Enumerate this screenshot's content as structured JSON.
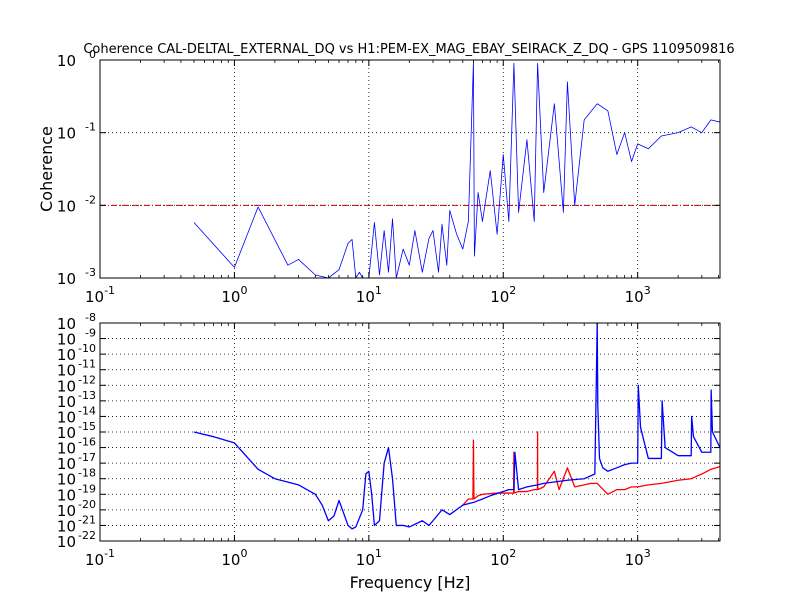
{
  "chart_data": [
    {
      "type": "line",
      "title": "Coherence CAL-DELTAL_EXTERNAL_DQ vs H1:PEM-EX_MAG_EBAY_SEIRACK_Z_DQ - GPS 1109509816",
      "xlabel": "",
      "ylabel": "Coherence",
      "xscale": "log",
      "yscale": "log",
      "xlim": [
        0.1,
        4096
      ],
      "ylim": [
        0.001,
        1
      ],
      "grid": true,
      "x_ticks": [
        {
          "value": 0.1,
          "base": "10",
          "exp": "-1"
        },
        {
          "value": 1,
          "base": "10",
          "exp": "0"
        },
        {
          "value": 10,
          "base": "10",
          "exp": "1"
        },
        {
          "value": 100,
          "base": "10",
          "exp": "2"
        },
        {
          "value": 1000,
          "base": "10",
          "exp": "3"
        }
      ],
      "y_ticks": [
        {
          "value": 1,
          "base": "10",
          "exp": "0"
        },
        {
          "value": 0.1,
          "base": "10",
          "exp": "-1"
        },
        {
          "value": 0.01,
          "base": "10",
          "exp": "-2"
        },
        {
          "value": 0.001,
          "base": "10",
          "exp": "-3"
        }
      ],
      "threshold": {
        "value": 0.01,
        "color": "#cc0000",
        "style": "dash-dot"
      },
      "series": [
        {
          "color": "#0000ff",
          "x": [
            0.5,
            1.0,
            1.5,
            2.5,
            3.0,
            4.0,
            5.0,
            6.0,
            7.0,
            7.5,
            8.0,
            8.5,
            9.0,
            10.0,
            11.0,
            12.0,
            13.0,
            14.0,
            15.0,
            16.0,
            18.0,
            20.0,
            22.0,
            25.0,
            28.0,
            30.0,
            33.0,
            35.0,
            38.0,
            40.0,
            45.0,
            50.0,
            55.0,
            60.0,
            61.0,
            65.0,
            70.0,
            80.0,
            90.0,
            100.0,
            110.0,
            120.0,
            130.0,
            150.0,
            170.0,
            180.0,
            200.0,
            240.0,
            280.0,
            300.0,
            340.0,
            400.0,
            500.0,
            600.0,
            700.0,
            800.0,
            900.0,
            1000.0,
            1200.0,
            1500.0,
            2000.0,
            2500.0,
            3000.0,
            3500.0,
            4096.0
          ],
          "y": [
            0.0058,
            0.0014,
            0.0095,
            0.0015,
            0.0018,
            0.0011,
            0.001,
            0.0013,
            0.003,
            0.0034,
            0.001,
            0.0012,
            0.001,
            0.001,
            0.0058,
            0.0011,
            0.0045,
            0.0012,
            0.0065,
            0.001,
            0.0025,
            0.0015,
            0.0045,
            0.0012,
            0.0035,
            0.0045,
            0.0012,
            0.0055,
            0.0015,
            0.0085,
            0.004,
            0.0025,
            0.006,
            0.95,
            0.002,
            0.015,
            0.006,
            0.03,
            0.004,
            0.05,
            0.006,
            0.9,
            0.008,
            0.08,
            0.006,
            0.9,
            0.015,
            0.25,
            0.008,
            0.5,
            0.01,
            0.15,
            0.25,
            0.2,
            0.05,
            0.1,
            0.04,
            0.07,
            0.06,
            0.09,
            0.1,
            0.12,
            0.1,
            0.15,
            0.14
          ]
        }
      ]
    },
    {
      "type": "line",
      "title": "",
      "xlabel": "Frequency [Hz]",
      "ylabel": "",
      "xscale": "log",
      "yscale": "log",
      "xlim": [
        0.1,
        4096
      ],
      "ylim": [
        1e-22,
        1e-08
      ],
      "grid": true,
      "x_ticks": [
        {
          "value": 0.1,
          "base": "10",
          "exp": "-1"
        },
        {
          "value": 1,
          "base": "10",
          "exp": "0"
        },
        {
          "value": 10,
          "base": "10",
          "exp": "1"
        },
        {
          "value": 100,
          "base": "10",
          "exp": "2"
        },
        {
          "value": 1000,
          "base": "10",
          "exp": "3"
        }
      ],
      "y_ticks": [
        {
          "value": 1e-08,
          "base": "10",
          "exp": "-8"
        },
        {
          "value": 1e-09,
          "base": "10",
          "exp": "-9"
        },
        {
          "value": 1e-10,
          "base": "10",
          "exp": "-10"
        },
        {
          "value": 1e-11,
          "base": "10",
          "exp": "-11"
        },
        {
          "value": 1e-12,
          "base": "10",
          "exp": "-12"
        },
        {
          "value": 1e-13,
          "base": "10",
          "exp": "-13"
        },
        {
          "value": 1e-14,
          "base": "10",
          "exp": "-14"
        },
        {
          "value": 1e-15,
          "base": "10",
          "exp": "-15"
        },
        {
          "value": 1e-16,
          "base": "10",
          "exp": "-16"
        },
        {
          "value": 1e-17,
          "base": "10",
          "exp": "-17"
        },
        {
          "value": 1e-18,
          "base": "10",
          "exp": "-18"
        },
        {
          "value": 1e-19,
          "base": "10",
          "exp": "-19"
        },
        {
          "value": 1e-20,
          "base": "10",
          "exp": "-20"
        },
        {
          "value": 1e-21,
          "base": "10",
          "exp": "-21"
        },
        {
          "value": 1e-22,
          "base": "10",
          "exp": "-22"
        }
      ],
      "series": [
        {
          "color": "#ff0000",
          "x": [
            50.0,
            55.0,
            59.5,
            60.0,
            60.5,
            65.0,
            70.0,
            80.0,
            90.0,
            100.0,
            110.0,
            119.5,
            120.0,
            120.5,
            130.0,
            150.0,
            170.0,
            179.5,
            180.0,
            180.5,
            200.0,
            240.0,
            260.0,
            300.0,
            340.0,
            400.0,
            450.0,
            500.0,
            600.0,
            700.0,
            800.0,
            900.0,
            1000.0,
            1200.0,
            1500.0,
            2000.0,
            2500.0,
            3000.0,
            3500.0,
            4096.0
          ],
          "y": [
            2e-20,
            5e-20,
            5e-20,
            3e-16,
            5e-20,
            8e-20,
            1e-19,
            1.1e-19,
            1.2e-19,
            1.2e-19,
            1.2e-19,
            1.2e-19,
            5e-17,
            1.2e-19,
            1.5e-19,
            1.5e-19,
            2e-19,
            2e-19,
            1e-15,
            2e-19,
            3e-19,
            3e-18,
            2e-19,
            5e-18,
            3e-19,
            4e-19,
            5e-19,
            5e-19,
            1e-19,
            2e-19,
            2e-19,
            3e-19,
            3e-19,
            4e-19,
            5e-19,
            8e-19,
            1e-18,
            2e-18,
            4e-18,
            6e-18
          ]
        },
        {
          "color": "#0000ff",
          "x": [
            0.5,
            0.7,
            1.0,
            1.5,
            2.0,
            3.0,
            4.0,
            4.5,
            5.0,
            5.5,
            6.0,
            6.5,
            7.0,
            7.5,
            8.0,
            9.0,
            9.5,
            10.0,
            10.5,
            11.0,
            12.0,
            13.0,
            14.0,
            15.0,
            16.0,
            18.0,
            20.0,
            25.0,
            28.0,
            30.0,
            35.0,
            40.0,
            50.0,
            60.0,
            70.0,
            80.0,
            100.0,
            110.0,
            120.0,
            122.0,
            130.0,
            150.0,
            180.0,
            200.0,
            300.0,
            400.0,
            480.0,
            500.0,
            505.0,
            520.0,
            550.0,
            600.0,
            700.0,
            800.0,
            900.0,
            1000.0,
            1010.0,
            1050.0,
            1200.0,
            1500.0,
            1520.0,
            1600.0,
            2000.0,
            2500.0,
            2520.0,
            2600.0,
            3000.0,
            3500.0,
            3520.0,
            3600.0,
            4096.0
          ],
          "y": [
            1e-15,
            5e-16,
            2e-16,
            4e-18,
            1e-18,
            4e-19,
            1e-19,
            2e-20,
            2e-21,
            4e-21,
            4e-20,
            6e-21,
            1e-21,
            6e-22,
            8e-22,
            1e-20,
            2e-18,
            3e-18,
            1e-19,
            1e-21,
            2e-21,
            1e-17,
            1e-16,
            1e-18,
            1e-21,
            1e-21,
            8e-22,
            2e-21,
            1e-21,
            2e-21,
            1e-20,
            5e-21,
            2e-20,
            3e-20,
            5e-20,
            8e-20,
            1.5e-19,
            2e-19,
            2e-19,
            5e-17,
            2e-19,
            3e-19,
            4e-19,
            5e-19,
            8e-19,
            1e-18,
            2e-18,
            1e-08,
            5e-14,
            2e-17,
            5e-18,
            3e-18,
            5e-18,
            8e-18,
            1e-17,
            1e-17,
            1e-12,
            2e-15,
            2e-17,
            2e-17,
            1e-13,
            1e-16,
            3e-17,
            3e-17,
            1e-14,
            5e-16,
            5e-17,
            5e-17,
            5e-13,
            1e-15,
            1e-16
          ]
        }
      ]
    }
  ]
}
